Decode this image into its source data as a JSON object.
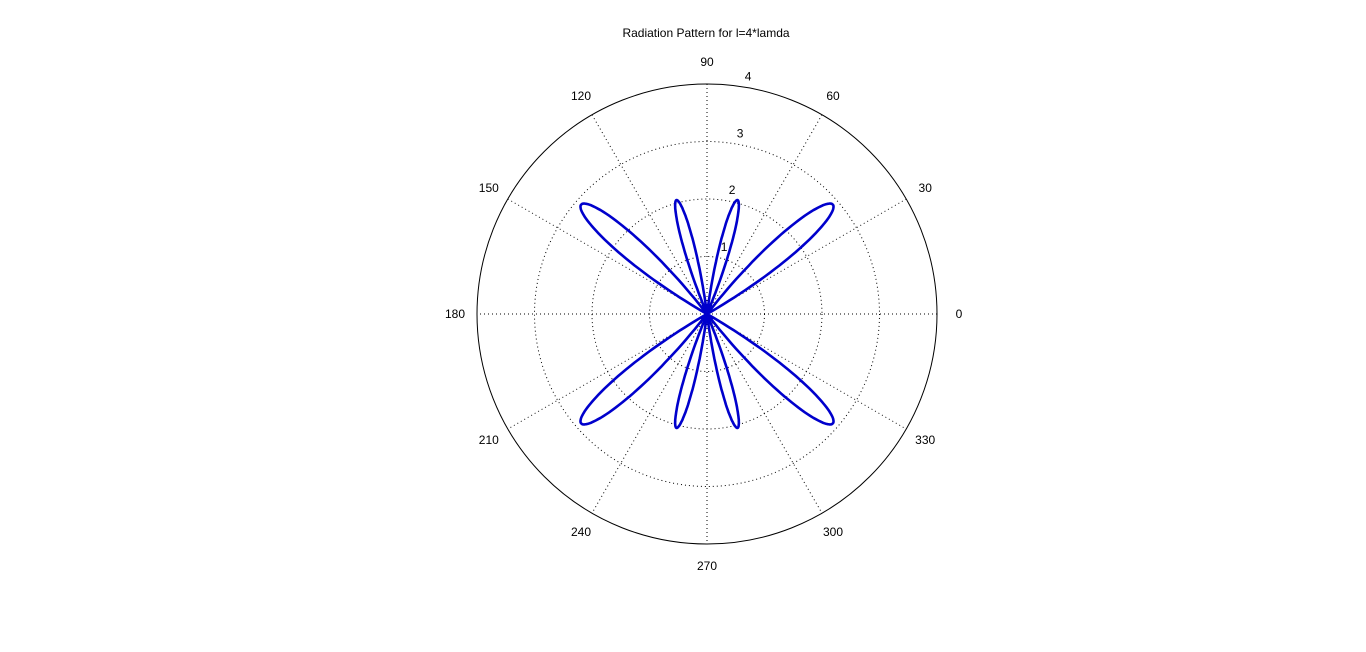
{
  "chart_data": {
    "type": "polar",
    "title": "Radiation Pattern for l=4*lamda",
    "angle_unit": "degrees",
    "angular_ticks": [
      "0",
      "30",
      "60",
      "90",
      "120",
      "150",
      "180",
      "210",
      "240",
      "270",
      "300",
      "330"
    ],
    "radial_ticks": [
      "1",
      "2",
      "3",
      "4"
    ],
    "rlim": [
      0,
      4
    ],
    "grid": true,
    "series": [
      {
        "color": "#0000cc",
        "description_of_lobes": [
          {
            "theta": 41,
            "r": 2.9
          },
          {
            "theta": 75,
            "r": 2.05
          },
          {
            "theta": 105,
            "r": 2.05
          },
          {
            "theta": 139,
            "r": 2.9
          },
          {
            "theta": 221,
            "r": 2.9
          },
          {
            "theta": 255,
            "r": 2.05
          },
          {
            "theta": 285,
            "r": 2.05
          },
          {
            "theta": 319,
            "r": 2.9
          }
        ]
      }
    ]
  },
  "colors": {
    "series": "#0000cc",
    "grid": "#000000",
    "background": "#ffffff"
  }
}
